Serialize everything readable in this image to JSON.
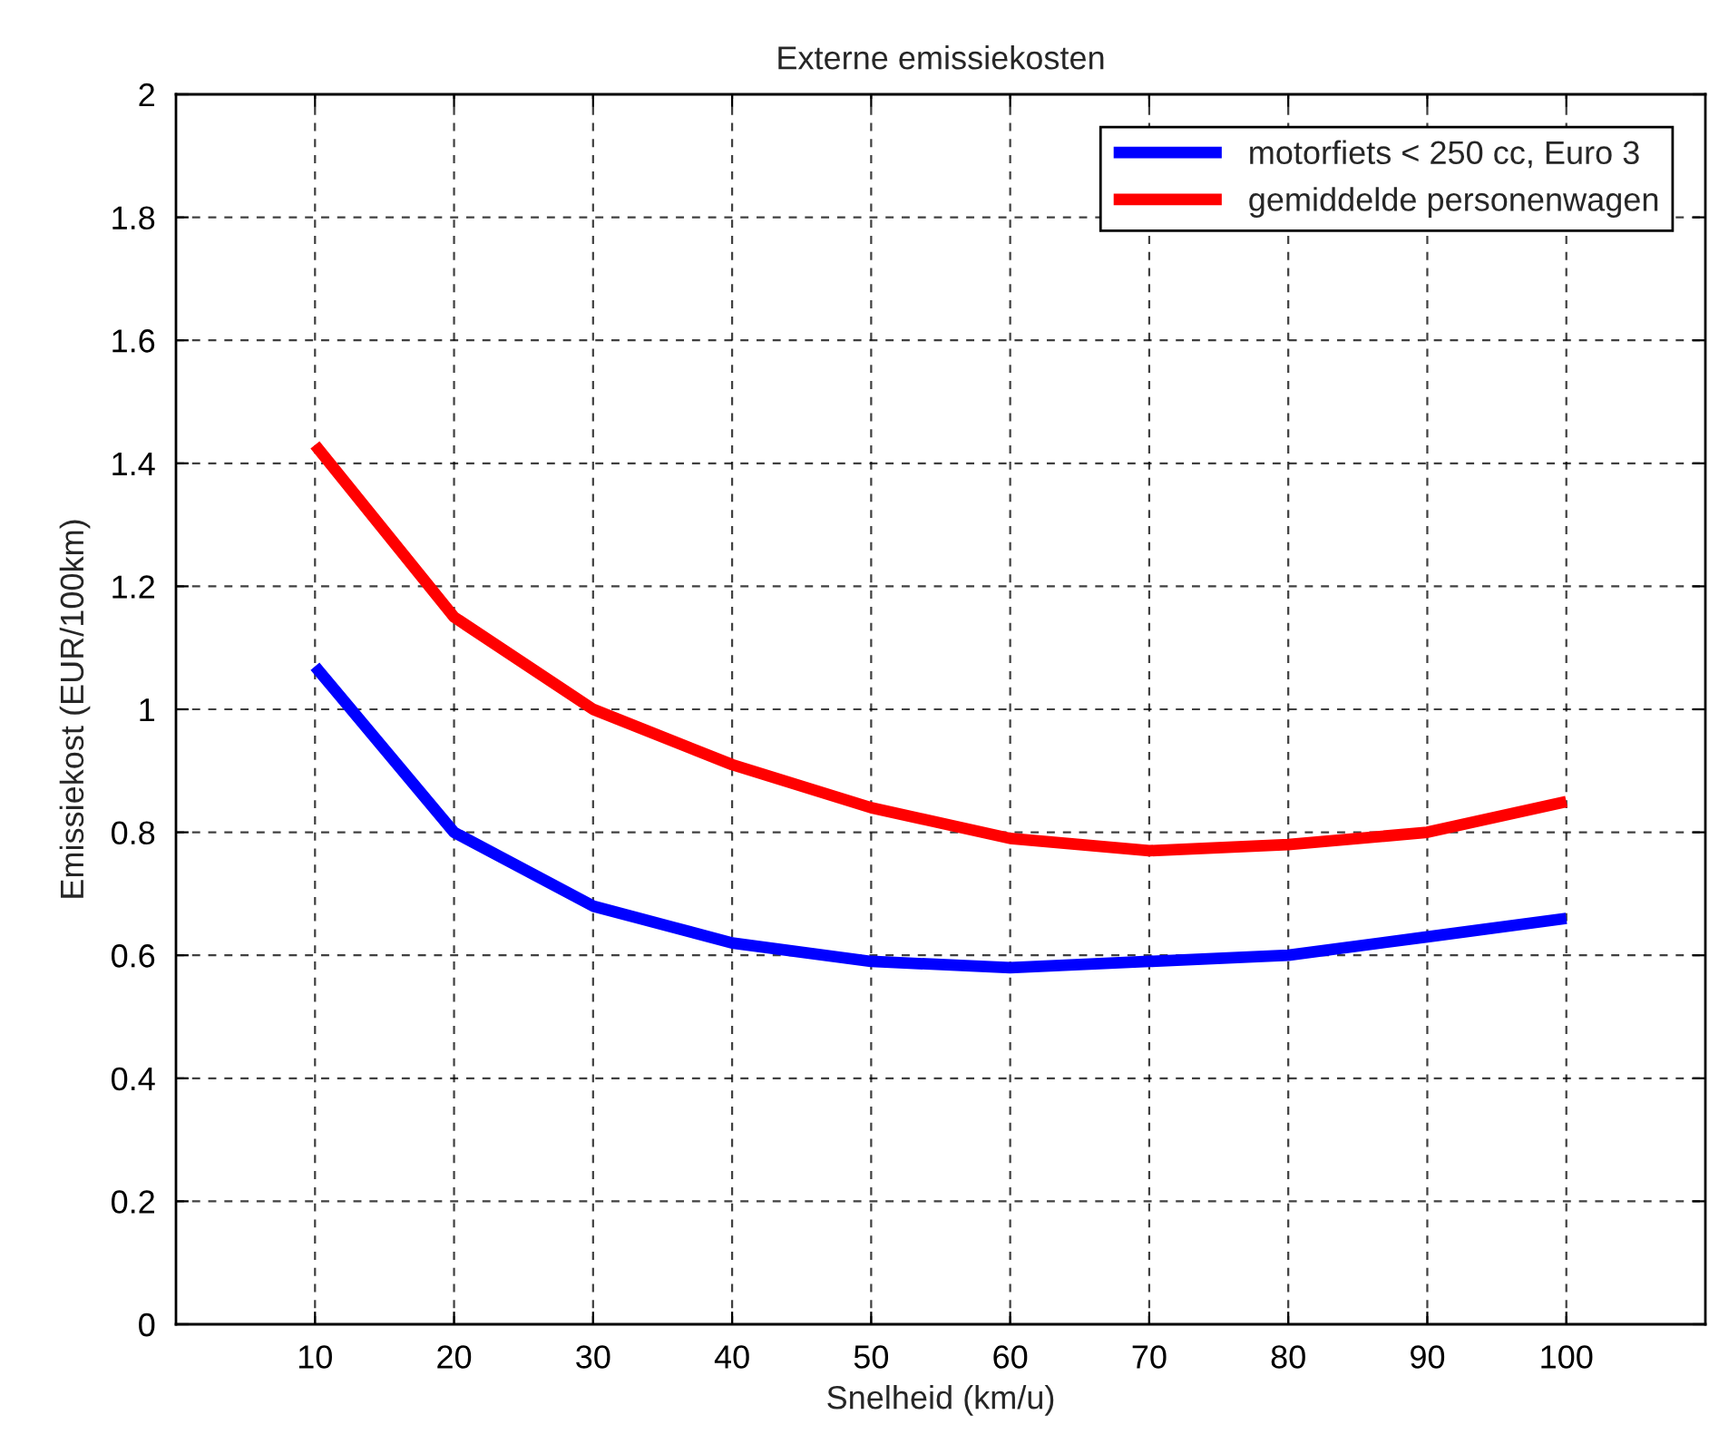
{
  "chart_data": {
    "type": "line",
    "title": "Externe emissiekosten",
    "xlabel": "Snelheid (km/u)",
    "ylabel": "Emissiekost (EUR/100km)",
    "x": [
      10,
      20,
      30,
      40,
      50,
      60,
      70,
      80,
      90,
      100
    ],
    "series": [
      {
        "name": "motorfiets < 250 cc, Euro 3",
        "color": "#0000ff",
        "values": [
          1.07,
          0.8,
          0.68,
          0.62,
          0.59,
          0.58,
          0.59,
          0.6,
          0.63,
          0.66
        ]
      },
      {
        "name": "gemiddelde personenwagen",
        "color": "#ff0000",
        "values": [
          1.43,
          1.15,
          1.0,
          0.91,
          0.84,
          0.79,
          0.77,
          0.78,
          0.8,
          0.85
        ]
      }
    ],
    "xlim": [
      0,
      110
    ],
    "xticks": [
      10,
      20,
      30,
      40,
      50,
      60,
      70,
      80,
      90,
      100
    ],
    "ylim": [
      0,
      2
    ],
    "yticks": [
      0,
      0.2,
      0.4,
      0.6,
      0.8,
      1,
      1.2,
      1.4,
      1.6,
      1.8,
      2
    ],
    "grid": true,
    "legend": "top right",
    "marker": "none",
    "line_style": "solid"
  }
}
